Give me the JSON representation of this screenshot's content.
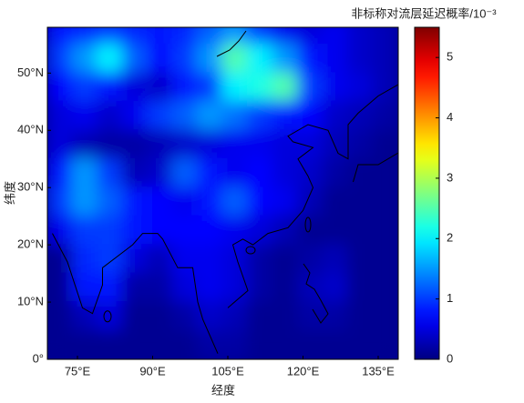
{
  "chart_data": {
    "type": "heatmap",
    "colormap": "jet",
    "x_label": "经度",
    "y_label": "纬度",
    "colorbar_label": "非标称对流层延迟概率/10⁻³",
    "xlim": [
      69,
      139
    ],
    "ylim": [
      0,
      58
    ],
    "clim": [
      0,
      5.5
    ],
    "xticks": [
      {
        "value": 75,
        "label": "75°E"
      },
      {
        "value": 90,
        "label": "90°E"
      },
      {
        "value": 105,
        "label": "105°E"
      },
      {
        "value": 120,
        "label": "120°E"
      },
      {
        "value": 135,
        "label": "135°E"
      }
    ],
    "yticks": [
      {
        "value": 0,
        "label": "0°"
      },
      {
        "value": 10,
        "label": "10°N"
      },
      {
        "value": 20,
        "label": "20°N"
      },
      {
        "value": 30,
        "label": "30°N"
      },
      {
        "value": 40,
        "label": "40°N"
      },
      {
        "value": 50,
        "label": "50°N"
      }
    ],
    "cticks": [
      0,
      1,
      2,
      3,
      4,
      5
    ],
    "x": [
      71.5,
      76.5,
      81.5,
      86.5,
      91.5,
      96.5,
      101.5,
      106.5,
      111.5,
      116.5,
      121.5,
      126.5,
      131.5,
      136.5
    ],
    "y": [
      57.5,
      52.5,
      47.5,
      42.5,
      37.5,
      32.5,
      27.5,
      22.5,
      17.5,
      12.5,
      7.5,
      2.5
    ],
    "z": [
      [
        0.8,
        0.9,
        1.0,
        0.9,
        0.8,
        0.9,
        1.2,
        1.5,
        1.0,
        0.6,
        0.5,
        0.6,
        0.4,
        0.3
      ],
      [
        1.0,
        1.5,
        2.0,
        1.2,
        0.7,
        1.0,
        1.5,
        2.5,
        2.0,
        1.5,
        0.8,
        0.6,
        0.4,
        0.3
      ],
      [
        0.7,
        1.0,
        0.8,
        0.5,
        0.4,
        0.8,
        1.0,
        2.0,
        2.2,
        2.5,
        1.0,
        0.6,
        0.5,
        0.3
      ],
      [
        0.5,
        0.6,
        0.4,
        0.6,
        1.0,
        1.2,
        1.5,
        1.3,
        1.0,
        0.8,
        0.7,
        0.4,
        0.3,
        0.2
      ],
      [
        0.5,
        0.3,
        0.2,
        0.2,
        0.3,
        0.4,
        0.5,
        0.6,
        0.6,
        0.5,
        0.5,
        0.3,
        0.2,
        0.1
      ],
      [
        0.8,
        1.5,
        1.0,
        0.3,
        0.4,
        1.2,
        0.8,
        0.6,
        0.7,
        0.5,
        0.4,
        0.2,
        0.1,
        0.1
      ],
      [
        1.0,
        1.5,
        1.2,
        0.8,
        0.7,
        0.6,
        0.8,
        1.2,
        0.7,
        0.6,
        0.3,
        0.1,
        0.1,
        0.1
      ],
      [
        0.6,
        1.0,
        1.0,
        0.8,
        0.7,
        0.7,
        0.7,
        0.6,
        0.5,
        0.3,
        0.1,
        0.1,
        0.1,
        0.1
      ],
      [
        0.1,
        0.9,
        1.0,
        0.5,
        0.3,
        0.6,
        0.6,
        0.5,
        0.2,
        0.1,
        0.2,
        0.3,
        0.1,
        0.1
      ],
      [
        0.1,
        0.8,
        0.8,
        0.2,
        0.2,
        0.5,
        0.6,
        0.5,
        0.2,
        0.1,
        0.3,
        0.4,
        0.1,
        0.1
      ],
      [
        0.1,
        0.3,
        0.5,
        0.1,
        0.1,
        0.2,
        0.4,
        0.3,
        0.1,
        0.1,
        0.2,
        0.2,
        0.1,
        0.1
      ],
      [
        0.1,
        0.1,
        0.1,
        0.1,
        0.1,
        0.1,
        0.2,
        0.2,
        0.1,
        0.1,
        0.1,
        0.1,
        0.1,
        0.1
      ]
    ]
  }
}
